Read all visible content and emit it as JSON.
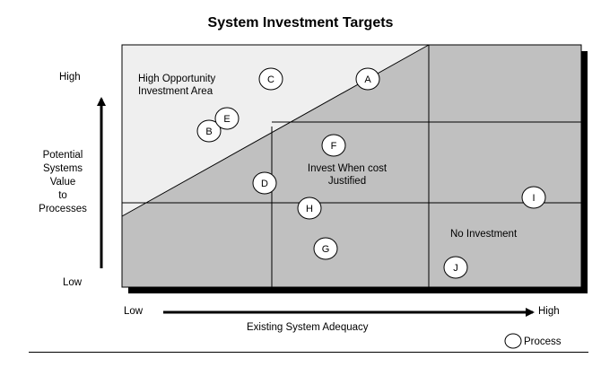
{
  "title": "System Investment Targets",
  "y_axis": {
    "high": "High",
    "low": "Low",
    "label": [
      "Potential",
      "Systems",
      "Value",
      "to",
      "Processes"
    ]
  },
  "x_axis": {
    "low": "Low",
    "high": "High",
    "label": "Existing System Adequacy"
  },
  "regions": {
    "opportunity": [
      "High Opportunity",
      "Investment Area"
    ],
    "invest_when": [
      "Invest When cost",
      "Justified"
    ],
    "no_investment": "No Investment"
  },
  "legend": {
    "label": "Process"
  },
  "processes": [
    "A",
    "B",
    "C",
    "D",
    "E",
    "F",
    "G",
    "H",
    "I",
    "J"
  ],
  "colors": {
    "region_dark": "#c0c0c0",
    "region_light": "#efefef",
    "shadow": "#000000",
    "circle_fill": "#ffffff"
  }
}
